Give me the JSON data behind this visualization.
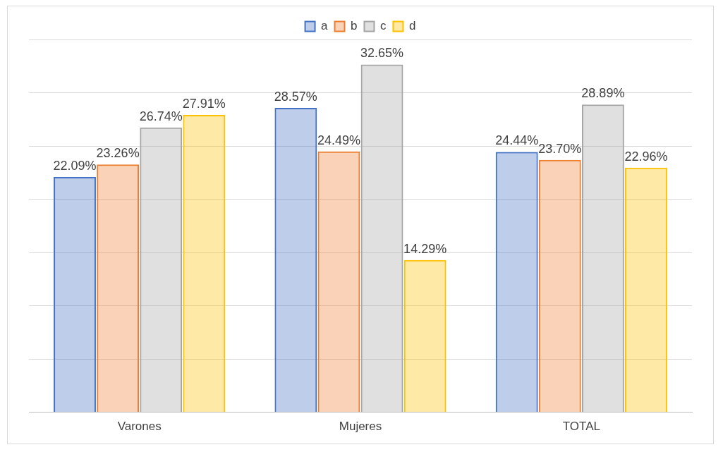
{
  "chart_data": {
    "type": "bar",
    "categories": [
      "Varones",
      "Mujeres",
      "TOTAL"
    ],
    "series": [
      {
        "name": "a",
        "color": "#4472c4",
        "values": [
          22.09,
          28.57,
          24.44
        ],
        "value_labels": [
          "22.09%",
          "28.57%",
          "24.44%"
        ]
      },
      {
        "name": "b",
        "color": "#ed7d31",
        "values": [
          23.26,
          24.49,
          23.7
        ],
        "value_labels": [
          "23.26%",
          "24.49%",
          "23.70%"
        ]
      },
      {
        "name": "c",
        "color": "#a5a5a5",
        "values": [
          26.74,
          32.65,
          28.89
        ],
        "value_labels": [
          "26.74%",
          "32.65%",
          "28.89%"
        ]
      },
      {
        "name": "d",
        "color": "#ffc000",
        "values": [
          27.91,
          14.29,
          22.96
        ],
        "value_labels": [
          "27.91%",
          "14.29%",
          "22.96%"
        ]
      }
    ],
    "ylim": [
      0,
      35
    ],
    "yticks": [
      {
        "value": 0,
        "label": null
      },
      {
        "value": 5,
        "label": null
      },
      {
        "value": 10,
        "label": null
      },
      {
        "value": 15,
        "label": null
      },
      {
        "value": 20,
        "label": null
      },
      {
        "value": 25,
        "label": null
      },
      {
        "value": 30,
        "label": null
      },
      {
        "value": 35,
        "label": null
      }
    ],
    "tick_labels": "x",
    "grid": "y",
    "legend": "top"
  }
}
